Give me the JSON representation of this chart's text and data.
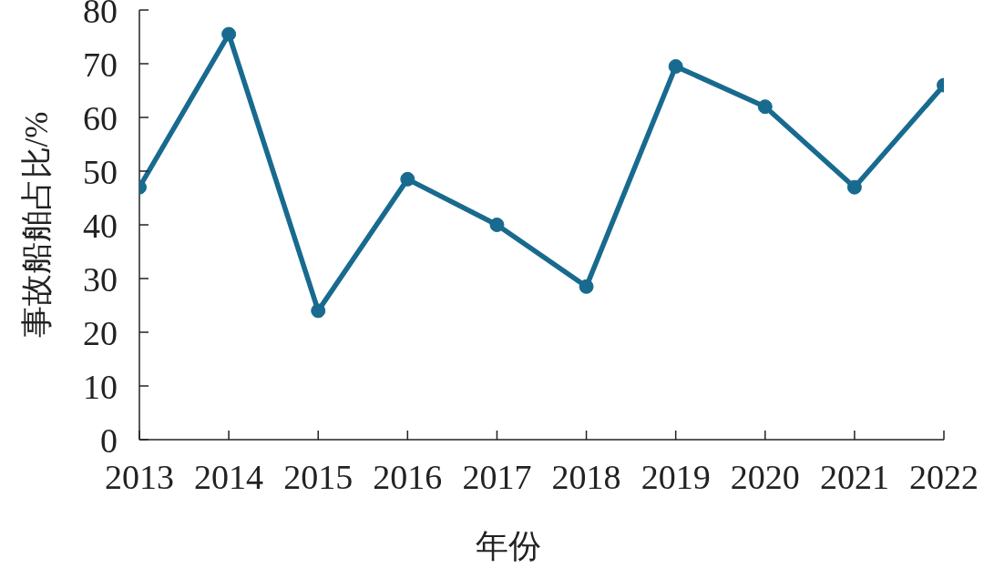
{
  "chart_data": {
    "type": "line",
    "xlabel": "年份",
    "ylabel": "事故船舶占比/%",
    "x": [
      2013,
      2014,
      2015,
      2016,
      2017,
      2018,
      2019,
      2020,
      2021,
      2022
    ],
    "series": [
      {
        "color": "#186a8f",
        "values": [
          47,
          75.5,
          24,
          48.5,
          40,
          28.5,
          69.5,
          62,
          47,
          66
        ]
      }
    ],
    "xlim": [
      2013,
      2022
    ],
    "xticks": [
      2013,
      2014,
      2015,
      2016,
      2017,
      2018,
      2019,
      2020,
      2021,
      2022
    ],
    "ylim": [
      0,
      80
    ],
    "yticks": [
      0,
      10,
      20,
      30,
      40,
      50,
      60,
      70,
      80
    ],
    "marker": "circle",
    "line_style": "solid"
  }
}
